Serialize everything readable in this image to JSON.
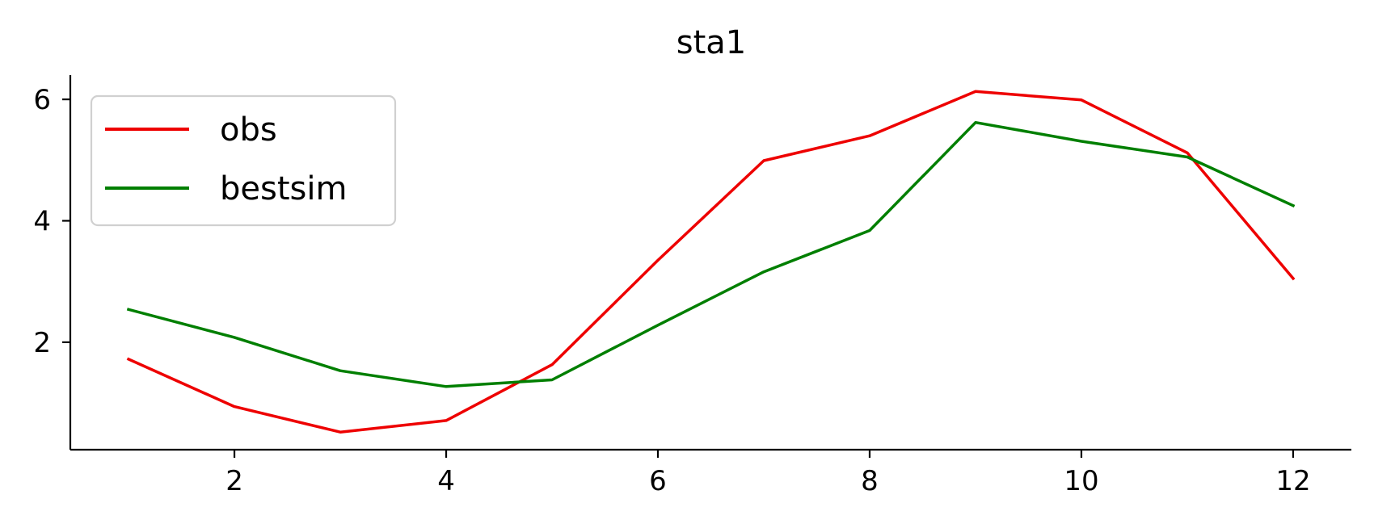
{
  "chart_data": {
    "type": "line",
    "title": "sta1",
    "xlabel": "",
    "ylabel": "",
    "x": [
      1,
      2,
      3,
      4,
      5,
      6,
      7,
      8,
      9,
      10,
      11,
      12
    ],
    "xlim": [
      0.45,
      12.55
    ],
    "ylim": [
      0.23,
      6.4
    ],
    "xticks": [
      2,
      4,
      6,
      8,
      10,
      12
    ],
    "yticks": [
      2,
      4,
      6
    ],
    "grid": false,
    "legend_position": "top-left",
    "series": [
      {
        "name": "obs",
        "color": "#ee0000",
        "values": [
          1.72,
          0.94,
          0.52,
          0.71,
          1.63,
          3.35,
          4.99,
          5.4,
          6.13,
          5.99,
          5.12,
          3.05
        ]
      },
      {
        "name": "bestsim",
        "color": "#007f00",
        "values": [
          2.54,
          2.08,
          1.53,
          1.27,
          1.38,
          2.28,
          3.16,
          3.84,
          5.62,
          5.31,
          5.05,
          4.25
        ]
      }
    ]
  }
}
